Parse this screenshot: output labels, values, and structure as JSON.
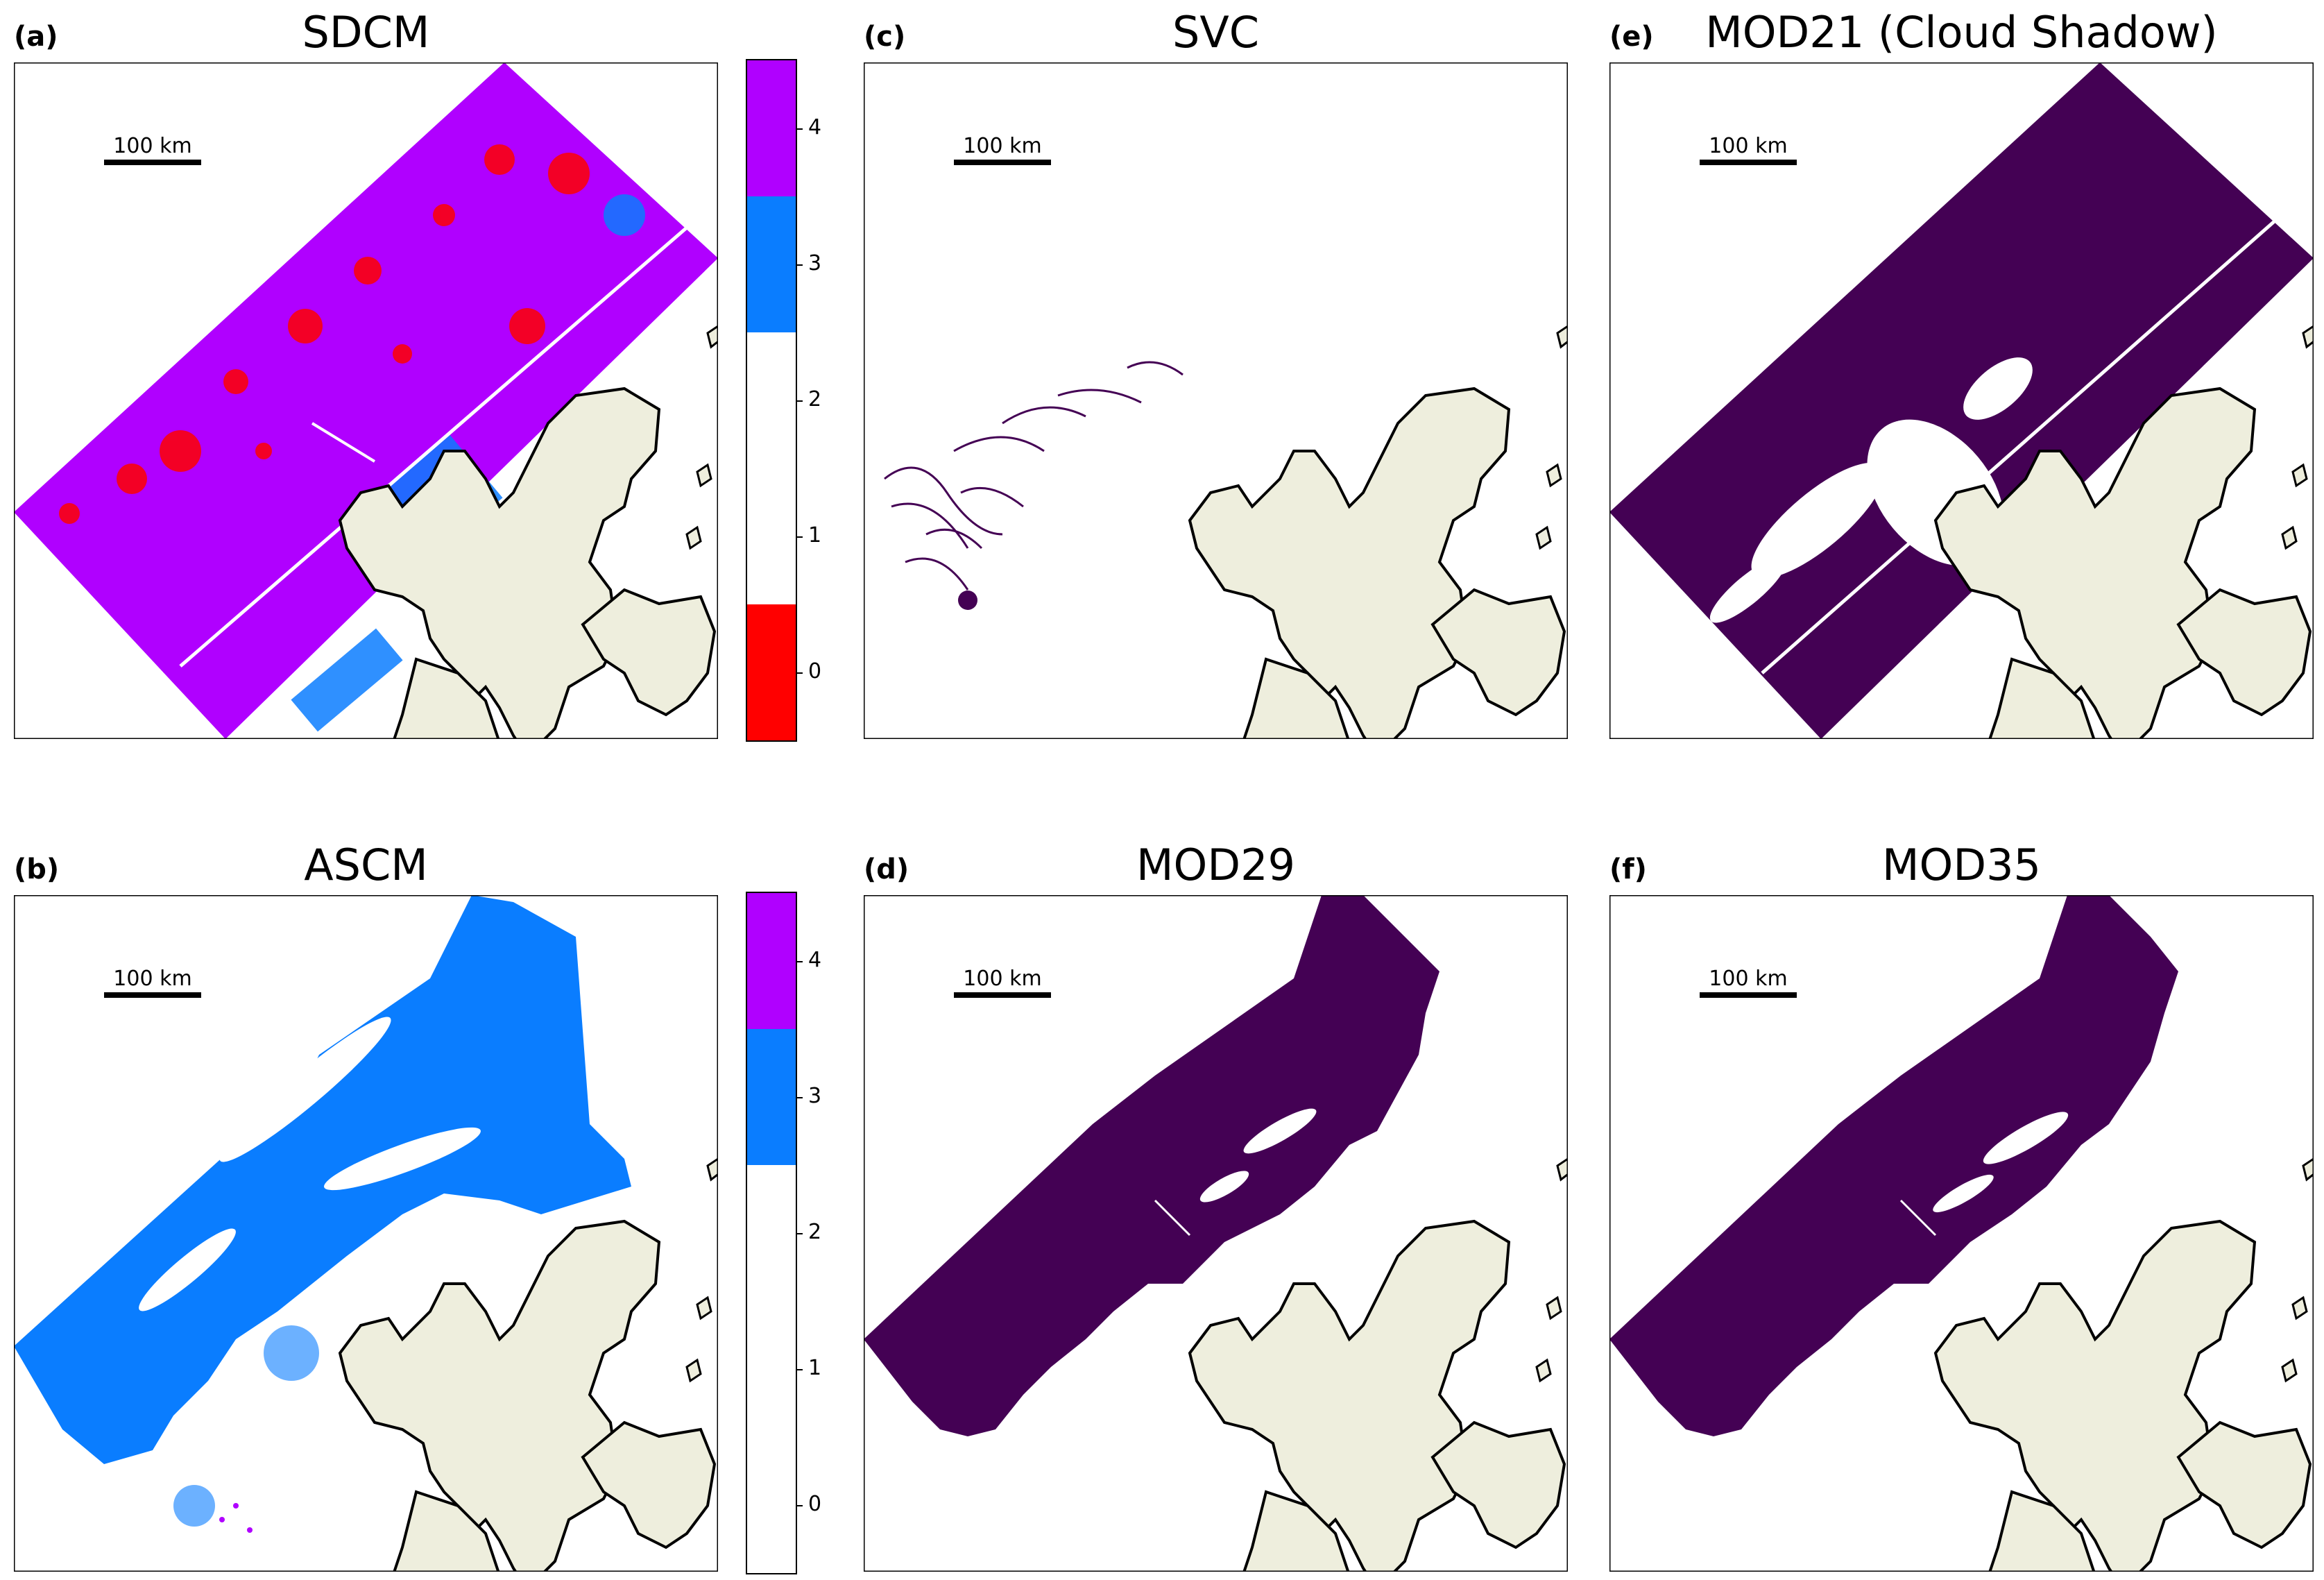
{
  "figure": {
    "scalebar_label": "100 km",
    "colors": {
      "land": "#eeeedd",
      "coast": "#000000",
      "class0": "#ff0000",
      "class1": "#ffffff",
      "class2": "#ffffff",
      "class3": "#0a7dff",
      "class4": "#b000ff",
      "mask": "#440154",
      "background": "#ffffff"
    }
  },
  "panels": [
    {
      "id": "a",
      "label": "(a)",
      "title": "SDCM",
      "content": "SDCM classification map"
    },
    {
      "id": "b",
      "label": "(b)",
      "title": "ASCM",
      "content": "ASCM classification map"
    },
    {
      "id": "c",
      "label": "(c)",
      "title": "SVC",
      "content": "SVC cloud mask"
    },
    {
      "id": "d",
      "label": "(d)",
      "title": "MOD29",
      "content": "MOD29 cloud mask"
    },
    {
      "id": "e",
      "label": "(e)",
      "title": "MOD21 (Cloud Shadow)",
      "content": "MOD21 cloud shadow mask"
    },
    {
      "id": "f",
      "label": "(f)",
      "title": "MOD35",
      "content": "MOD35 cloud mask"
    }
  ],
  "colorbars": [
    {
      "panel": "a",
      "ticks": [
        "0",
        "1",
        "2",
        "3",
        "4"
      ],
      "colors": [
        "#ff0000",
        "#ffffff",
        "#ffffff",
        "#0a7dff",
        "#b000ff"
      ]
    },
    {
      "panel": "b",
      "ticks": [
        "0",
        "1",
        "2",
        "3",
        "4"
      ],
      "colors": [
        "#ffffff",
        "#ffffff",
        "#ffffff",
        "#0a7dff",
        "#b000ff"
      ]
    }
  ]
}
